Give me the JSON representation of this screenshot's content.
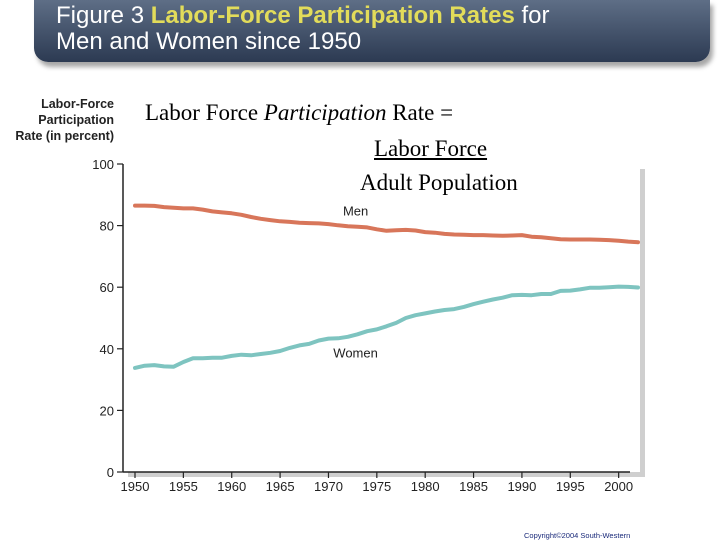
{
  "title": {
    "prefix": "Figure 3 ",
    "highlight": "Labor-Force Participation Rates",
    "suffix_line1": " for",
    "line2": "Men and Women since 1950"
  },
  "formula": {
    "lhs_plain": "Labor Force ",
    "lhs_italic": "Participation",
    "lhs_tail": " Rate =",
    "numerator": "Labor Force",
    "denominator": "Adult Population"
  },
  "copyright": "Copyright©2004  South-Western",
  "colors": {
    "men": "#d8765a",
    "women": "#7ec4c0",
    "axis": "#222222",
    "title_highlight": "#e2dc5a"
  },
  "chart_data": {
    "type": "line",
    "ylabel": "Labor-Force\nParticipation\nRate (in percent)",
    "xlabel": "",
    "ylim": [
      0,
      100
    ],
    "xlim": [
      1950,
      2002
    ],
    "yticks": [
      0,
      20,
      40,
      60,
      80,
      100
    ],
    "xticks": [
      1950,
      1955,
      1960,
      1965,
      1970,
      1975,
      1980,
      1985,
      1990,
      1995,
      2000
    ],
    "grid": false,
    "x": [
      1950,
      1951,
      1952,
      1953,
      1954,
      1955,
      1956,
      1957,
      1958,
      1959,
      1960,
      1961,
      1962,
      1963,
      1964,
      1965,
      1966,
      1967,
      1968,
      1969,
      1970,
      1971,
      1972,
      1973,
      1974,
      1975,
      1976,
      1977,
      1978,
      1979,
      1980,
      1981,
      1982,
      1983,
      1984,
      1985,
      1986,
      1987,
      1988,
      1989,
      1990,
      1991,
      1992,
      1993,
      1994,
      1995,
      1996,
      1997,
      1998,
      1999,
      2000,
      2001,
      2002
    ],
    "series": [
      {
        "name": "Men",
        "label": "Men",
        "values": [
          86.5,
          86.5,
          86.4,
          86.0,
          85.8,
          85.6,
          85.6,
          85.2,
          84.6,
          84.3,
          84.0,
          83.5,
          82.8,
          82.2,
          81.8,
          81.4,
          81.2,
          80.9,
          80.8,
          80.7,
          80.5,
          80.1,
          79.8,
          79.6,
          79.4,
          78.8,
          78.3,
          78.5,
          78.6,
          78.4,
          77.9,
          77.7,
          77.3,
          77.1,
          77.0,
          76.9,
          76.9,
          76.8,
          76.7,
          76.8,
          76.9,
          76.4,
          76.2,
          75.9,
          75.6,
          75.5,
          75.5,
          75.5,
          75.4,
          75.3,
          75.1,
          74.8,
          74.6
        ]
      },
      {
        "name": "Women",
        "label": "Women",
        "values": [
          33.8,
          34.5,
          34.7,
          34.3,
          34.2,
          35.7,
          36.9,
          36.9,
          37.1,
          37.1,
          37.7,
          38.1,
          37.9,
          38.3,
          38.7,
          39.3,
          40.3,
          41.1,
          41.6,
          42.7,
          43.3,
          43.4,
          43.9,
          44.7,
          45.7,
          46.3,
          47.3,
          48.4,
          50.0,
          50.9,
          51.5,
          52.1,
          52.6,
          52.9,
          53.6,
          54.5,
          55.3,
          56.0,
          56.6,
          57.4,
          57.5,
          57.4,
          57.8,
          57.8,
          58.8,
          58.9,
          59.3,
          59.8,
          59.8,
          60.0,
          60.2,
          60.1,
          59.9
        ]
      }
    ]
  }
}
